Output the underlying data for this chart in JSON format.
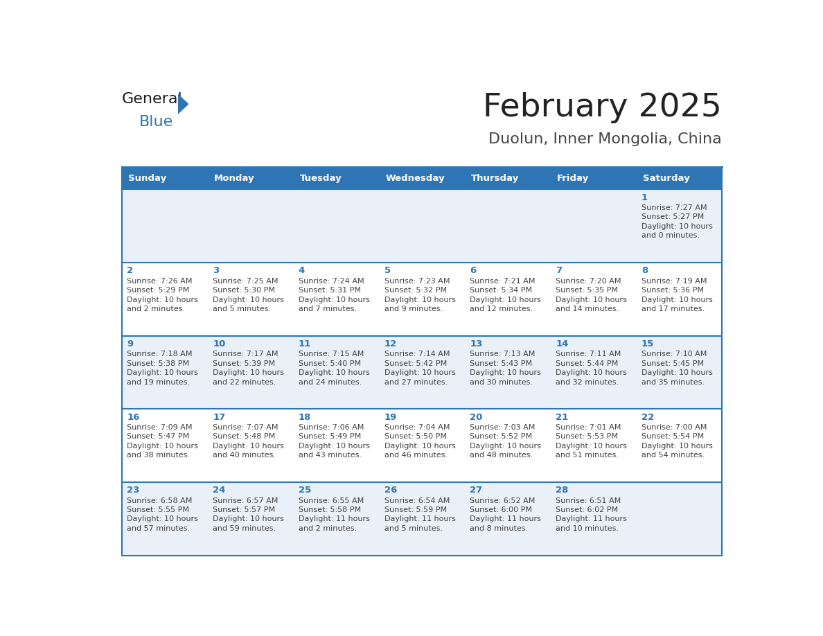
{
  "title": "February 2025",
  "subtitle": "Duolun, Inner Mongolia, China",
  "days_of_week": [
    "Sunday",
    "Monday",
    "Tuesday",
    "Wednesday",
    "Thursday",
    "Friday",
    "Saturday"
  ],
  "header_bg_color": "#2e75b6",
  "header_text_color": "#ffffff",
  "row_bg_even": "#eaf0f7",
  "row_bg_odd": "#ffffff",
  "cell_border_color": "#2e75b6",
  "day_number_color": "#2e75b6",
  "cell_text_color": "#404040",
  "background_color": "#ffffff",
  "title_color": "#222222",
  "subtitle_color": "#444444",
  "logo_general_color": "#1a1a1a",
  "logo_blue_color": "#2e75b6",
  "calendar_data": [
    [
      {
        "day": null,
        "info": ""
      },
      {
        "day": null,
        "info": ""
      },
      {
        "day": null,
        "info": ""
      },
      {
        "day": null,
        "info": ""
      },
      {
        "day": null,
        "info": ""
      },
      {
        "day": null,
        "info": ""
      },
      {
        "day": 1,
        "info": "Sunrise: 7:27 AM\nSunset: 5:27 PM\nDaylight: 10 hours\nand 0 minutes."
      }
    ],
    [
      {
        "day": 2,
        "info": "Sunrise: 7:26 AM\nSunset: 5:29 PM\nDaylight: 10 hours\nand 2 minutes."
      },
      {
        "day": 3,
        "info": "Sunrise: 7:25 AM\nSunset: 5:30 PM\nDaylight: 10 hours\nand 5 minutes."
      },
      {
        "day": 4,
        "info": "Sunrise: 7:24 AM\nSunset: 5:31 PM\nDaylight: 10 hours\nand 7 minutes."
      },
      {
        "day": 5,
        "info": "Sunrise: 7:23 AM\nSunset: 5:32 PM\nDaylight: 10 hours\nand 9 minutes."
      },
      {
        "day": 6,
        "info": "Sunrise: 7:21 AM\nSunset: 5:34 PM\nDaylight: 10 hours\nand 12 minutes."
      },
      {
        "day": 7,
        "info": "Sunrise: 7:20 AM\nSunset: 5:35 PM\nDaylight: 10 hours\nand 14 minutes."
      },
      {
        "day": 8,
        "info": "Sunrise: 7:19 AM\nSunset: 5:36 PM\nDaylight: 10 hours\nand 17 minutes."
      }
    ],
    [
      {
        "day": 9,
        "info": "Sunrise: 7:18 AM\nSunset: 5:38 PM\nDaylight: 10 hours\nand 19 minutes."
      },
      {
        "day": 10,
        "info": "Sunrise: 7:17 AM\nSunset: 5:39 PM\nDaylight: 10 hours\nand 22 minutes."
      },
      {
        "day": 11,
        "info": "Sunrise: 7:15 AM\nSunset: 5:40 PM\nDaylight: 10 hours\nand 24 minutes."
      },
      {
        "day": 12,
        "info": "Sunrise: 7:14 AM\nSunset: 5:42 PM\nDaylight: 10 hours\nand 27 minutes."
      },
      {
        "day": 13,
        "info": "Sunrise: 7:13 AM\nSunset: 5:43 PM\nDaylight: 10 hours\nand 30 minutes."
      },
      {
        "day": 14,
        "info": "Sunrise: 7:11 AM\nSunset: 5:44 PM\nDaylight: 10 hours\nand 32 minutes."
      },
      {
        "day": 15,
        "info": "Sunrise: 7:10 AM\nSunset: 5:45 PM\nDaylight: 10 hours\nand 35 minutes."
      }
    ],
    [
      {
        "day": 16,
        "info": "Sunrise: 7:09 AM\nSunset: 5:47 PM\nDaylight: 10 hours\nand 38 minutes."
      },
      {
        "day": 17,
        "info": "Sunrise: 7:07 AM\nSunset: 5:48 PM\nDaylight: 10 hours\nand 40 minutes."
      },
      {
        "day": 18,
        "info": "Sunrise: 7:06 AM\nSunset: 5:49 PM\nDaylight: 10 hours\nand 43 minutes."
      },
      {
        "day": 19,
        "info": "Sunrise: 7:04 AM\nSunset: 5:50 PM\nDaylight: 10 hours\nand 46 minutes."
      },
      {
        "day": 20,
        "info": "Sunrise: 7:03 AM\nSunset: 5:52 PM\nDaylight: 10 hours\nand 48 minutes."
      },
      {
        "day": 21,
        "info": "Sunrise: 7:01 AM\nSunset: 5:53 PM\nDaylight: 10 hours\nand 51 minutes."
      },
      {
        "day": 22,
        "info": "Sunrise: 7:00 AM\nSunset: 5:54 PM\nDaylight: 10 hours\nand 54 minutes."
      }
    ],
    [
      {
        "day": 23,
        "info": "Sunrise: 6:58 AM\nSunset: 5:55 PM\nDaylight: 10 hours\nand 57 minutes."
      },
      {
        "day": 24,
        "info": "Sunrise: 6:57 AM\nSunset: 5:57 PM\nDaylight: 10 hours\nand 59 minutes."
      },
      {
        "day": 25,
        "info": "Sunrise: 6:55 AM\nSunset: 5:58 PM\nDaylight: 11 hours\nand 2 minutes."
      },
      {
        "day": 26,
        "info": "Sunrise: 6:54 AM\nSunset: 5:59 PM\nDaylight: 11 hours\nand 5 minutes."
      },
      {
        "day": 27,
        "info": "Sunrise: 6:52 AM\nSunset: 6:00 PM\nDaylight: 11 hours\nand 8 minutes."
      },
      {
        "day": 28,
        "info": "Sunrise: 6:51 AM\nSunset: 6:02 PM\nDaylight: 11 hours\nand 10 minutes."
      },
      {
        "day": null,
        "info": ""
      }
    ]
  ]
}
